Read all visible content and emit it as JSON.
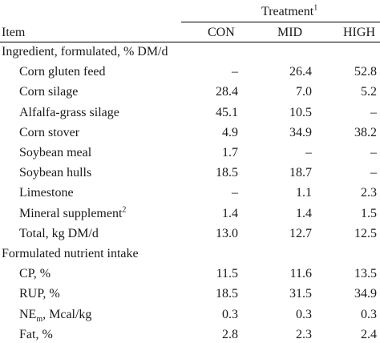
{
  "header": {
    "group_label": "Treatment",
    "group_sup": "1",
    "item_label": "Item",
    "columns": [
      "CON",
      "MID",
      "HIGH"
    ]
  },
  "sections": [
    {
      "title": "Ingredient, formulated, % DM/d",
      "rows": [
        {
          "label": "Corn gluten feed",
          "values": [
            "–",
            "26.4",
            "52.8"
          ]
        },
        {
          "label": "Corn silage",
          "values": [
            "28.4",
            "7.0",
            "5.2"
          ]
        },
        {
          "label": "Alfalfa-grass silage",
          "values": [
            "45.1",
            "10.5",
            "–"
          ]
        },
        {
          "label": "Corn stover",
          "values": [
            "4.9",
            "34.9",
            "38.2"
          ]
        },
        {
          "label": "Soybean meal",
          "values": [
            "1.7",
            "–",
            "–"
          ]
        },
        {
          "label": "Soybean hulls",
          "values": [
            "18.5",
            "18.7",
            "–"
          ]
        },
        {
          "label": "Limestone",
          "values": [
            "–",
            "1.1",
            "2.3"
          ]
        },
        {
          "label": "Mineral supplement",
          "sup": "2",
          "values": [
            "1.4",
            "1.4",
            "1.5"
          ]
        },
        {
          "label": "Total, kg DM/d",
          "values": [
            "13.0",
            "12.7",
            "12.5"
          ]
        }
      ]
    },
    {
      "title": "Formulated nutrient intake",
      "rows": [
        {
          "label": "CP, %",
          "values": [
            "11.5",
            "11.6",
            "13.5"
          ]
        },
        {
          "label": "RUP, %",
          "values": [
            "18.5",
            "31.5",
            "34.9"
          ]
        },
        {
          "label": "NE",
          "sub": "m",
          "label_suffix": ", Mcal/kg",
          "values": [
            "0.3",
            "0.3",
            "0.3"
          ]
        },
        {
          "label": "Fat, %",
          "values": [
            "2.8",
            "2.3",
            "2.4"
          ]
        }
      ]
    }
  ]
}
